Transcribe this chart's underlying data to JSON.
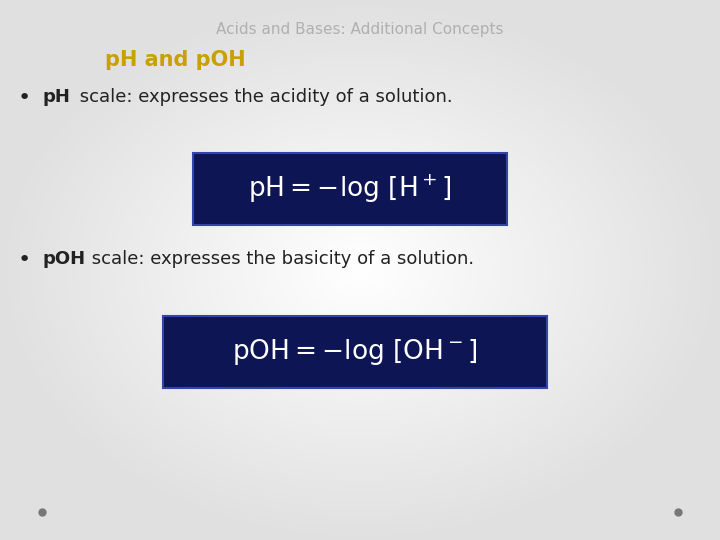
{
  "title": "Acids and Bases: Additional Concepts",
  "title_color": "#b0b0b0",
  "title_fontsize": 11,
  "subtitle": "pH and pOH",
  "subtitle_color": "#c8a000",
  "subtitle_fontsize": 15,
  "formula_bg_color": "#0d1555",
  "formula_text_color": "#ffffff",
  "bullet_color": "#222222",
  "bullet_fontsize": 13,
  "formula_fontsize": 19,
  "dot_color": "#777777",
  "bg_color": "#e8e8ec"
}
